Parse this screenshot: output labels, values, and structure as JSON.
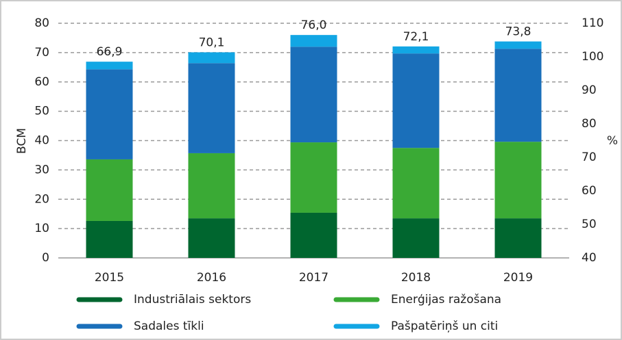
{
  "chart_data": {
    "type": "stacked_bar",
    "y_label": "BCM",
    "y2_label": "%",
    "categories": [
      "2015",
      "2016",
      "2017",
      "2018",
      "2019"
    ],
    "series": [
      {
        "name": "Industriālais sektors",
        "color": "#00662f",
        "values": [
          12.6,
          13.5,
          15.4,
          13.5,
          13.5
        ]
      },
      {
        "name": "Enerģijas ražošana",
        "color": "#3aaa35",
        "values": [
          21.0,
          22.2,
          24.0,
          24.0,
          26.1
        ]
      },
      {
        "name": "Sadales tīkli",
        "color": "#1a6fba",
        "values": [
          30.7,
          30.7,
          32.6,
          32.2,
          31.7
        ]
      },
      {
        "name": "Pašpatēriņš un citi",
        "color": "#12a6e4",
        "values": [
          2.6,
          3.7,
          4.0,
          2.4,
          2.5
        ]
      }
    ],
    "totals": [
      66.9,
      70.1,
      76.0,
      72.1,
      73.8
    ],
    "total_labels": [
      "66,9",
      "70,1",
      "76,0",
      "72,1",
      "73,8"
    ],
    "ylim": [
      0,
      80
    ],
    "yticks": [
      0,
      10,
      20,
      30,
      40,
      50,
      60,
      70,
      80
    ],
    "y2lim": [
      40,
      110
    ],
    "y2ticks": [
      40,
      50,
      60,
      70,
      80,
      90,
      100,
      110
    ],
    "grid": true
  }
}
